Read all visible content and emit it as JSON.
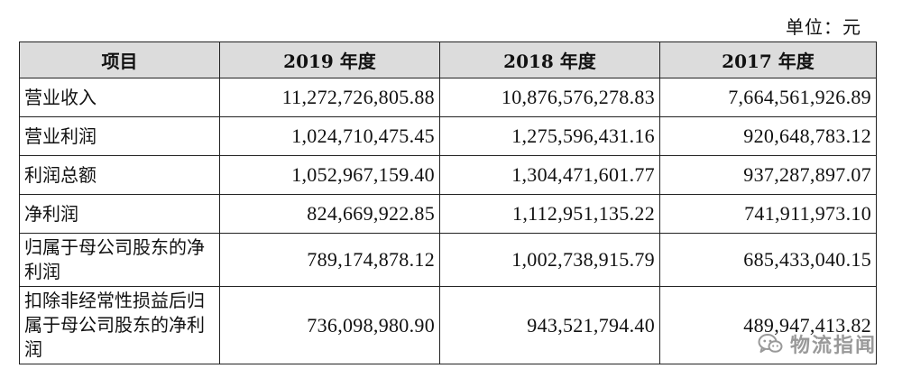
{
  "unit_label": "单位：元",
  "table": {
    "headers": [
      "项目",
      "2019 年度",
      "2018 年度",
      "2017 年度"
    ],
    "rows": [
      {
        "label": "营业收入",
        "values": [
          "11,272,726,805.88",
          "10,876,576,278.83",
          "7,664,561,926.89"
        ]
      },
      {
        "label": "营业利润",
        "values": [
          "1,024,710,475.45",
          "1,275,596,431.16",
          "920,648,783.12"
        ]
      },
      {
        "label": "利润总额",
        "values": [
          "1,052,967,159.40",
          "1,304,471,601.77",
          "937,287,897.07"
        ]
      },
      {
        "label": "净利润",
        "values": [
          "824,669,922.85",
          "1,112,951,135.22",
          "741,911,973.10"
        ]
      },
      {
        "label": "归属于母公司股东的净利润",
        "values": [
          "789,174,878.12",
          "1,002,738,915.79",
          "685,433,040.15"
        ]
      },
      {
        "label": "扣除非经常性损益后归属于母公司股东的净利润",
        "values": [
          "736,098,980.90",
          "943,521,794.40",
          "489,947,413.82"
        ]
      }
    ]
  },
  "watermark": {
    "text": "物流指闻",
    "icon": "wechat-icon"
  }
}
